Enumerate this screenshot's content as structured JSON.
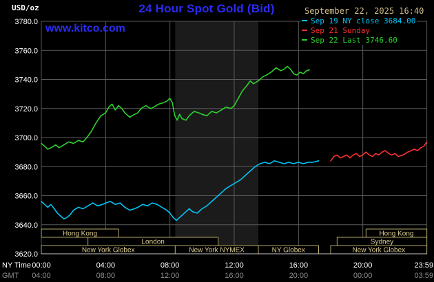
{
  "header": {
    "unit_label": "USD/oz",
    "title": "24 Hour Spot Gold (Bid)",
    "datetime": "September 22, 2025 16:40",
    "watermark": "www.kitco.com"
  },
  "legend": {
    "items": [
      {
        "label": "Sep 19 NY close 3684.00",
        "color": "#00c4f5"
      },
      {
        "label": "Sep 21 Sunday",
        "color": "#ff3030"
      },
      {
        "label": "Sep 22 Last 3746.60",
        "color": "#2dd22d"
      }
    ]
  },
  "chart_data": {
    "type": "line",
    "title": "24 Hour Spot Gold (Bid)",
    "ylabel": "USD/oz",
    "xlim": [
      0,
      24
    ],
    "ylim": [
      3620,
      3780
    ],
    "y_gridline_step": 20,
    "grid_color": "#5a5a5a",
    "axis_line_color": "#c8c8c8",
    "band": {
      "start_hour": 8.33,
      "end_hour": 13.5,
      "color": "#1b1b1b"
    },
    "axes": {
      "ny_label": "NY Time",
      "gmt_label": "GMT",
      "y_ticks": [
        {
          "value": 3780,
          "label": "3780.0"
        },
        {
          "value": 3760,
          "label": "3760.0"
        },
        {
          "value": 3740,
          "label": "3740.0"
        },
        {
          "value": 3720,
          "label": "3720.0"
        },
        {
          "value": 3700,
          "label": "3700.0"
        },
        {
          "value": 3680,
          "label": "3680.0"
        },
        {
          "value": 3660,
          "label": "3660.0"
        },
        {
          "value": 3640,
          "label": "3640.0"
        },
        {
          "value": 3620,
          "label": "3620.0"
        }
      ],
      "x_ticks": [
        {
          "hour": 0,
          "ny": "00:00",
          "gmt": "04:00"
        },
        {
          "hour": 4,
          "ny": "04:00",
          "gmt": "08:00"
        },
        {
          "hour": 8,
          "ny": "08:00",
          "gmt": "12:00"
        },
        {
          "hour": 12,
          "ny": "12:00",
          "gmt": "16:00"
        },
        {
          "hour": 16,
          "ny": "16:00",
          "gmt": "20:00"
        },
        {
          "hour": 20,
          "ny": "20:00",
          "gmt": "00:00"
        },
        {
          "hour": 23.983,
          "ny": "23:59",
          "gmt": "03:59"
        }
      ]
    },
    "sessions": {
      "border_color": "#b5a666",
      "text_color": "#dbcc92",
      "rows": [
        [
          {
            "label": "Hong Kong",
            "start": 0,
            "end": 4.8
          },
          {
            "label": "Hong Kong",
            "start": 20.2,
            "end": 23.983
          }
        ],
        [
          {
            "label": "London",
            "start": 2.9,
            "end": 11.0
          },
          {
            "label": "Sydney",
            "start": 18.4,
            "end": 23.983
          }
        ],
        [
          {
            "label": "New York Globex",
            "start": 0,
            "end": 8.33
          },
          {
            "label": "New York NYMEX",
            "start": 8.33,
            "end": 13.5
          },
          {
            "label": "NY Globex",
            "start": 13.5,
            "end": 17.25
          },
          {
            "label": "New York Globex",
            "start": 18.0,
            "end": 23.983
          }
        ]
      ]
    },
    "series": [
      {
        "id": "sep19",
        "name": "Sep 19 NY close",
        "close": 3684.0,
        "color": "#00c4f5",
        "points": [
          [
            0,
            3656
          ],
          [
            0.2,
            3654
          ],
          [
            0.4,
            3652
          ],
          [
            0.6,
            3654
          ],
          [
            0.8,
            3651
          ],
          [
            1.0,
            3648
          ],
          [
            1.2,
            3646
          ],
          [
            1.4,
            3644
          ],
          [
            1.6,
            3645
          ],
          [
            1.8,
            3647
          ],
          [
            2.0,
            3650
          ],
          [
            2.3,
            3652
          ],
          [
            2.6,
            3651
          ],
          [
            2.9,
            3653
          ],
          [
            3.2,
            3655
          ],
          [
            3.5,
            3653
          ],
          [
            3.8,
            3654
          ],
          [
            4.0,
            3655
          ],
          [
            4.3,
            3656
          ],
          [
            4.6,
            3654
          ],
          [
            4.9,
            3655
          ],
          [
            5.2,
            3652
          ],
          [
            5.5,
            3650
          ],
          [
            5.8,
            3651
          ],
          [
            6.0,
            3652
          ],
          [
            6.3,
            3654
          ],
          [
            6.6,
            3653
          ],
          [
            6.9,
            3655
          ],
          [
            7.2,
            3654
          ],
          [
            7.5,
            3652
          ],
          [
            7.8,
            3650
          ],
          [
            8.0,
            3648
          ],
          [
            8.2,
            3645
          ],
          [
            8.4,
            3643
          ],
          [
            8.6,
            3645
          ],
          [
            8.8,
            3647
          ],
          [
            9.0,
            3649
          ],
          [
            9.2,
            3651
          ],
          [
            9.4,
            3649
          ],
          [
            9.7,
            3648
          ],
          [
            10.0,
            3651
          ],
          [
            10.3,
            3653
          ],
          [
            10.6,
            3656
          ],
          [
            10.9,
            3659
          ],
          [
            11.2,
            3662
          ],
          [
            11.5,
            3665
          ],
          [
            11.8,
            3667
          ],
          [
            12.1,
            3669
          ],
          [
            12.4,
            3671
          ],
          [
            12.7,
            3674
          ],
          [
            13.0,
            3677
          ],
          [
            13.3,
            3680
          ],
          [
            13.6,
            3682
          ],
          [
            13.9,
            3683
          ],
          [
            14.2,
            3682
          ],
          [
            14.5,
            3684
          ],
          [
            14.8,
            3683
          ],
          [
            15.1,
            3682
          ],
          [
            15.4,
            3683
          ],
          [
            15.7,
            3682
          ],
          [
            16.0,
            3683
          ],
          [
            16.3,
            3682
          ],
          [
            16.6,
            3683
          ],
          [
            16.9,
            3683
          ],
          [
            17.25,
            3684
          ]
        ]
      },
      {
        "id": "sep21",
        "name": "Sep 21 Sunday",
        "color": "#ff3030",
        "points": [
          [
            18.0,
            3684
          ],
          [
            18.2,
            3687
          ],
          [
            18.4,
            3688
          ],
          [
            18.6,
            3686
          ],
          [
            18.8,
            3687
          ],
          [
            19.0,
            3688
          ],
          [
            19.2,
            3686
          ],
          [
            19.4,
            3688
          ],
          [
            19.6,
            3689
          ],
          [
            19.8,
            3687
          ],
          [
            20.0,
            3688
          ],
          [
            20.2,
            3690
          ],
          [
            20.4,
            3688
          ],
          [
            20.6,
            3687
          ],
          [
            20.8,
            3689
          ],
          [
            21.0,
            3688
          ],
          [
            21.2,
            3690
          ],
          [
            21.4,
            3691
          ],
          [
            21.6,
            3689
          ],
          [
            21.8,
            3688
          ],
          [
            22.0,
            3689
          ],
          [
            22.2,
            3687
          ],
          [
            22.5,
            3688
          ],
          [
            22.8,
            3690
          ],
          [
            23.0,
            3691
          ],
          [
            23.2,
            3692
          ],
          [
            23.4,
            3691
          ],
          [
            23.6,
            3693
          ],
          [
            23.8,
            3694
          ],
          [
            23.98,
            3697
          ]
        ]
      },
      {
        "id": "sep22",
        "name": "Sep 22",
        "last": 3746.6,
        "color": "#2dd22d",
        "points": [
          [
            0,
            3696
          ],
          [
            0.2,
            3694
          ],
          [
            0.4,
            3692
          ],
          [
            0.6,
            3693
          ],
          [
            0.9,
            3695
          ],
          [
            1.1,
            3693
          ],
          [
            1.4,
            3695
          ],
          [
            1.7,
            3697
          ],
          [
            2.0,
            3696
          ],
          [
            2.3,
            3698
          ],
          [
            2.6,
            3697
          ],
          [
            2.9,
            3701
          ],
          [
            3.1,
            3704
          ],
          [
            3.4,
            3710
          ],
          [
            3.7,
            3715
          ],
          [
            4.0,
            3717
          ],
          [
            4.2,
            3721
          ],
          [
            4.4,
            3723
          ],
          [
            4.6,
            3719
          ],
          [
            4.8,
            3722
          ],
          [
            5.0,
            3720
          ],
          [
            5.2,
            3717
          ],
          [
            5.5,
            3714
          ],
          [
            5.8,
            3716
          ],
          [
            6.0,
            3717
          ],
          [
            6.2,
            3720
          ],
          [
            6.5,
            3722
          ],
          [
            6.8,
            3720
          ],
          [
            7.0,
            3721
          ],
          [
            7.3,
            3723
          ],
          [
            7.6,
            3724
          ],
          [
            7.8,
            3725
          ],
          [
            8.0,
            3727
          ],
          [
            8.15,
            3724
          ],
          [
            8.3,
            3715
          ],
          [
            8.45,
            3712
          ],
          [
            8.6,
            3716
          ],
          [
            8.75,
            3713
          ],
          [
            9.0,
            3712
          ],
          [
            9.2,
            3715
          ],
          [
            9.5,
            3718
          ],
          [
            9.8,
            3717
          ],
          [
            10.0,
            3716
          ],
          [
            10.3,
            3715
          ],
          [
            10.6,
            3718
          ],
          [
            10.9,
            3717
          ],
          [
            11.2,
            3719
          ],
          [
            11.5,
            3721
          ],
          [
            11.8,
            3720
          ],
          [
            12.0,
            3722
          ],
          [
            12.2,
            3726
          ],
          [
            12.5,
            3732
          ],
          [
            12.8,
            3736
          ],
          [
            13.0,
            3739
          ],
          [
            13.2,
            3737
          ],
          [
            13.5,
            3739
          ],
          [
            13.8,
            3742
          ],
          [
            14.0,
            3743
          ],
          [
            14.3,
            3745
          ],
          [
            14.6,
            3748
          ],
          [
            14.9,
            3746
          ],
          [
            15.1,
            3747
          ],
          [
            15.3,
            3749
          ],
          [
            15.5,
            3747
          ],
          [
            15.7,
            3744
          ],
          [
            15.9,
            3743
          ],
          [
            16.1,
            3745
          ],
          [
            16.3,
            3744
          ],
          [
            16.5,
            3746
          ],
          [
            16.67,
            3746.6
          ]
        ]
      }
    ]
  }
}
